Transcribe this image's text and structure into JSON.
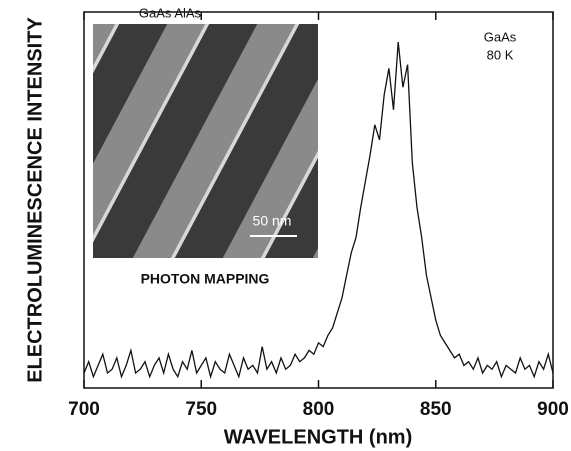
{
  "chart_data": {
    "type": "line",
    "x_label": "WAVELENGTH (nm)",
    "y_label": "ELECTROLUMINESCENCE INTENSITY",
    "annotations": [
      "GaAs",
      "80 K"
    ],
    "inset": {
      "top_label": "GaAs AlAs",
      "scale_label": "50 nm",
      "caption": "PHOTON MAPPING"
    },
    "xlim": [
      700,
      900
    ],
    "xticks": [
      700,
      750,
      800,
      850,
      900
    ],
    "ylim": [
      0,
      100
    ],
    "color": "#111111",
    "x": [
      700,
      702,
      704,
      706,
      708,
      710,
      712,
      714,
      716,
      718,
      720,
      722,
      724,
      726,
      728,
      730,
      732,
      734,
      736,
      738,
      740,
      742,
      744,
      746,
      748,
      750,
      752,
      754,
      756,
      758,
      760,
      762,
      764,
      766,
      768,
      770,
      772,
      774,
      776,
      778,
      780,
      782,
      784,
      786,
      788,
      790,
      792,
      794,
      796,
      798,
      800,
      802,
      804,
      806,
      808,
      810,
      812,
      814,
      816,
      818,
      820,
      822,
      824,
      826,
      828,
      830,
      832,
      834,
      836,
      838,
      840,
      842,
      844,
      846,
      848,
      850,
      852,
      854,
      856,
      858,
      860,
      862,
      864,
      866,
      868,
      870,
      872,
      874,
      876,
      878,
      880,
      882,
      884,
      886,
      888,
      890,
      892,
      894,
      896,
      898,
      900
    ],
    "values": [
      4,
      7,
      3,
      6,
      9,
      4,
      5,
      8,
      3,
      6,
      10,
      4,
      5,
      7,
      3,
      6,
      8,
      4,
      9,
      5,
      3,
      7,
      5,
      10,
      4,
      6,
      8,
      3,
      7,
      5,
      4,
      9,
      6,
      3,
      8,
      5,
      6,
      4,
      11,
      5,
      7,
      4,
      8,
      5,
      6,
      9,
      7,
      8,
      10,
      9,
      12,
      11,
      14,
      16,
      20,
      24,
      30,
      36,
      40,
      48,
      55,
      62,
      70,
      66,
      78,
      85,
      74,
      92,
      80,
      86,
      60,
      48,
      40,
      30,
      24,
      18,
      14,
      12,
      10,
      8,
      9,
      6,
      7,
      5,
      8,
      4,
      6,
      5,
      7,
      3,
      6,
      5,
      4,
      8,
      5,
      6,
      3,
      7,
      5,
      9,
      4
    ]
  }
}
